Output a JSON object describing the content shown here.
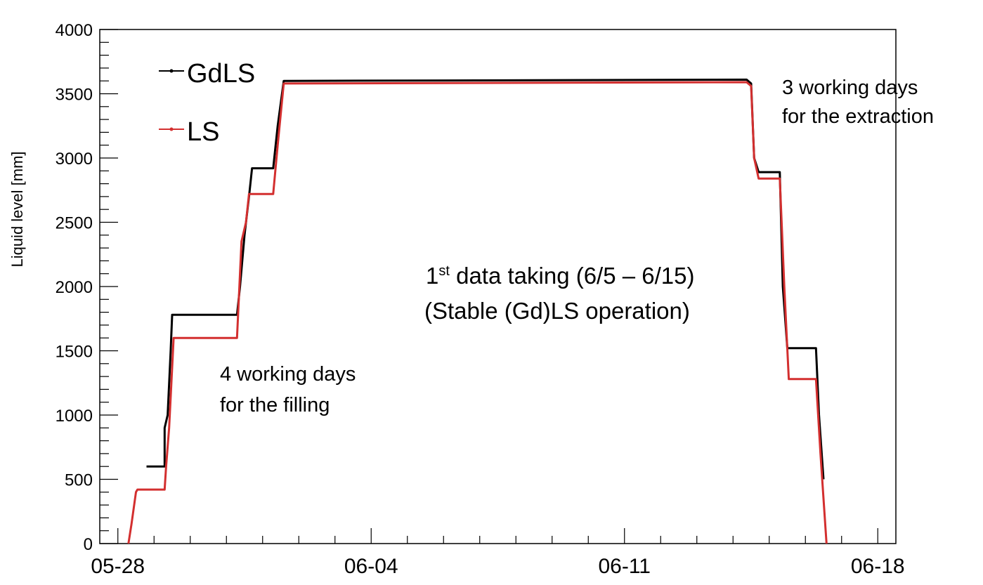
{
  "chart_data": {
    "type": "line",
    "title": "",
    "xlabel": "",
    "ylabel": "Liquid level [mm]",
    "x_unit": "date",
    "xlim": [
      "05-27 12:00",
      "06-18 12:00"
    ],
    "ylim": [
      0,
      4000
    ],
    "y_ticks": [
      0,
      500,
      1000,
      1500,
      2000,
      2500,
      3000,
      3500,
      4000
    ],
    "x_ticks": [
      "05-28",
      "06-04",
      "06-11",
      "06-18"
    ],
    "grid": false,
    "legend": {
      "placement": "top-left",
      "entries": [
        {
          "name": "GdLS",
          "color": "#000000"
        },
        {
          "name": "LS",
          "color": "#d32f2f"
        }
      ]
    },
    "series": [
      {
        "name": "GdLS",
        "color": "#000000",
        "points": [
          [
            "05-28 19:00",
            600
          ],
          [
            "05-29 07:00",
            600
          ],
          [
            "05-29 07:00",
            900
          ],
          [
            "05-29 09:00",
            1000
          ],
          [
            "05-29 11:00",
            1500
          ],
          [
            "05-29 12:00",
            1780
          ],
          [
            "05-31 07:00",
            1780
          ],
          [
            "05-31 09:00",
            2000
          ],
          [
            "05-31 12:00",
            2400
          ],
          [
            "05-31 15:00",
            2700
          ],
          [
            "05-31 17:00",
            2920
          ],
          [
            "06-01 07:00",
            2920
          ],
          [
            "06-01 10:00",
            3250
          ],
          [
            "06-01 14:00",
            3600
          ],
          [
            "06-14 09:00",
            3610
          ],
          [
            "06-14 12:00",
            3580
          ],
          [
            "06-14 14:00",
            3000
          ],
          [
            "06-14 17:00",
            2890
          ],
          [
            "06-15 07:00",
            2890
          ],
          [
            "06-15 09:00",
            2000
          ],
          [
            "06-15 12:00",
            1520
          ],
          [
            "06-16 07:00",
            1520
          ],
          [
            "06-16 09:00",
            1000
          ],
          [
            "06-16 12:00",
            500
          ]
        ]
      },
      {
        "name": "LS",
        "color": "#d32f2f",
        "points": [
          [
            "05-28 07:00",
            0
          ],
          [
            "05-28 09:00",
            150
          ],
          [
            "05-28 12:00",
            400
          ],
          [
            "05-28 13:00",
            420
          ],
          [
            "05-29 07:00",
            420
          ],
          [
            "05-29 08:00",
            600
          ],
          [
            "05-29 10:00",
            900
          ],
          [
            "05-29 13:00",
            1600
          ],
          [
            "05-31 07:00",
            1600
          ],
          [
            "05-31 10:00",
            2350
          ],
          [
            "05-31 13:00",
            2500
          ],
          [
            "05-31 15:00",
            2720
          ],
          [
            "06-01 07:00",
            2720
          ],
          [
            "06-01 10:00",
            3100
          ],
          [
            "06-01 14:00",
            3580
          ],
          [
            "06-14 09:00",
            3590
          ],
          [
            "06-14 12:00",
            3560
          ],
          [
            "06-14 14:00",
            3000
          ],
          [
            "06-14 17:00",
            2840
          ],
          [
            "06-15 07:00",
            2840
          ],
          [
            "06-15 10:00",
            2000
          ],
          [
            "06-15 13:00",
            1280
          ],
          [
            "06-16 07:00",
            1280
          ],
          [
            "06-16 10:00",
            700
          ],
          [
            "06-16 14:00",
            0
          ]
        ]
      }
    ],
    "annotations": [
      {
        "text": "4 working days",
        "near": "05-30 / 1350"
      },
      {
        "text": "for the filling",
        "near": "05-30 / 1050"
      },
      {
        "text": "1",
        "sup": "st",
        "text_after": " data taking (6/5 – 6/15)",
        "near": "06-07 / 2050"
      },
      {
        "text": "(Stable (Gd)LS operation)",
        "near": "06-07 / 1800"
      },
      {
        "text": "3 working days",
        "near": "06-16 / 3500"
      },
      {
        "text": "for the extraction",
        "near": "06-16 / 3250"
      }
    ]
  }
}
